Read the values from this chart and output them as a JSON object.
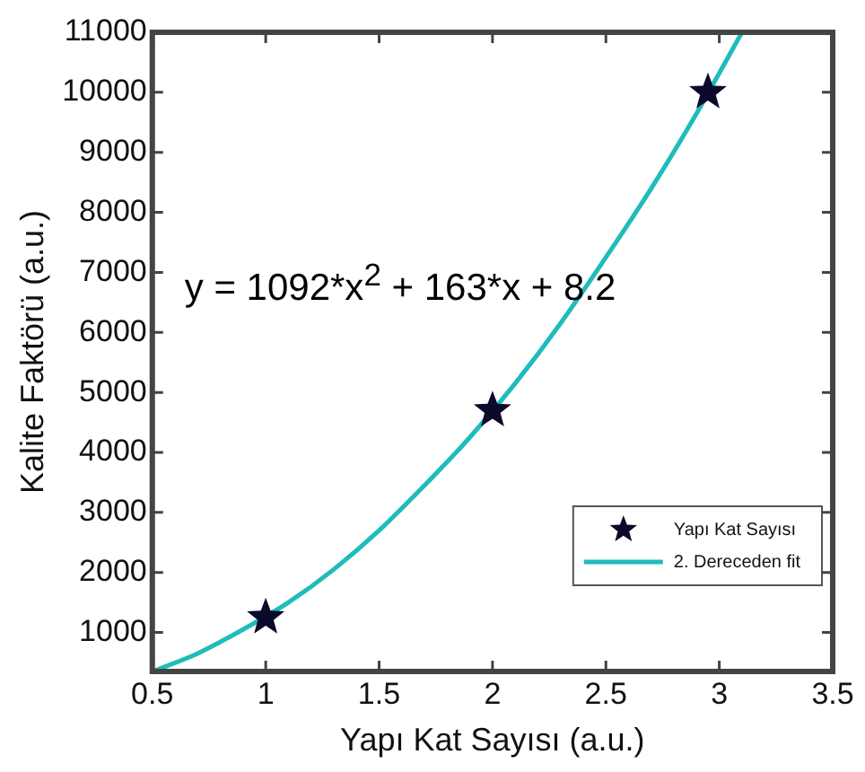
{
  "chart_data": {
    "type": "scatter",
    "xlabel": "Yapı Kat Sayısı (a.u.)",
    "ylabel": "Kalite Faktörü (a.u.)",
    "annotations": [
      "y = 1092*x$^{2}$ + 163*x + 8.2"
    ],
    "series": [
      {
        "name": "Yapı Kat Sayısı",
        "type": "scatter",
        "color": "#0a0a2a",
        "marker": "star",
        "x": [
          1,
          2,
          2.95
        ],
        "values": [
          1250,
          4700,
          10000
        ]
      },
      {
        "name": "2. Dereceden fit",
        "type": "line",
        "color": "#1fbcbc",
        "marker": "none",
        "line_style": "solid",
        "x": [
          0.5,
          0.7,
          0.9,
          1.1,
          1.3,
          1.5,
          1.7,
          1.9,
          2.1,
          2.3,
          2.5,
          2.7,
          2.9,
          3.1
        ],
        "values": [
          350,
          650,
          1050,
          1500,
          2050,
          2700,
          3450,
          4250,
          5150,
          6150,
          7250,
          8400,
          9650,
          11000
        ]
      }
    ],
    "xlim": [
      0.5,
      3.5
    ],
    "xticks": [
      0.5,
      1,
      1.5,
      2,
      2.5,
      3,
      3.5
    ],
    "ylim": [
      350,
      11000
    ],
    "yticks": [
      1000,
      2000,
      3000,
      4000,
      5000,
      6000,
      7000,
      8000,
      9000,
      10000,
      11000
    ],
    "grid": false,
    "legend": "bottom right"
  }
}
